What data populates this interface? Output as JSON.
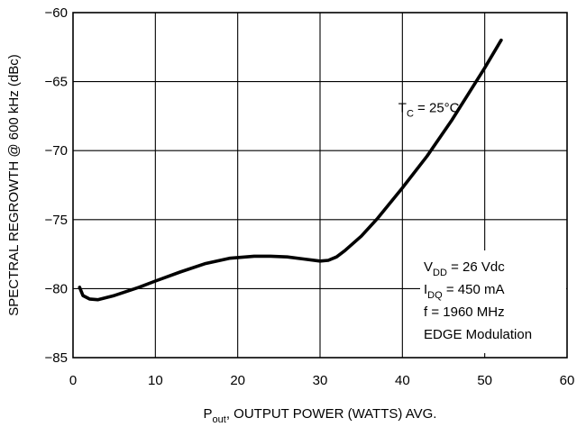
{
  "chart_data": {
    "type": "line",
    "title": "",
    "xlabel": {
      "main": "P",
      "sub": "out",
      "rest": ", OUTPUT POWER (WATTS) AVG."
    },
    "ylabel": "SPECTRAL REGROWTH @ 600 kHz (dBc)",
    "xlim": [
      0,
      60
    ],
    "ylim": [
      -85,
      -60
    ],
    "x_ticks": [
      0,
      10,
      20,
      30,
      40,
      50,
      60
    ],
    "y_ticks": [
      -85,
      -80,
      -75,
      -70,
      -65,
      -60
    ],
    "x_tick_labels": [
      "0",
      "10",
      "20",
      "30",
      "40",
      "50",
      "60"
    ],
    "y_tick_labels": [
      "−85",
      "−80",
      "−75",
      "−70",
      "−65",
      "−60"
    ],
    "grid": true,
    "series": [
      {
        "x": [
          0.8,
          1.2,
          2.0,
          3.0,
          5.0,
          8.0,
          10.0,
          13.0,
          16.0,
          19.0,
          22.0,
          24.0,
          26.0,
          28.0,
          30.0,
          31.0,
          32.0,
          33.0,
          35.0,
          37.0,
          40.0,
          43.0,
          46.0,
          48.0,
          50.0,
          52.0
        ],
        "y": [
          -79.9,
          -80.5,
          -80.75,
          -80.8,
          -80.5,
          -79.9,
          -79.45,
          -78.8,
          -78.2,
          -77.8,
          -77.65,
          -77.65,
          -77.7,
          -77.85,
          -78.0,
          -77.95,
          -77.7,
          -77.25,
          -76.2,
          -74.9,
          -72.7,
          -70.4,
          -67.8,
          -65.9,
          -64.0,
          -62.0
        ]
      }
    ],
    "annotations": {
      "tc": {
        "main": "T",
        "sub": "C",
        "rest": " = 25°C",
        "x": 39.5,
        "y": -67.2
      },
      "conditions": [
        {
          "main": "V",
          "sub": "DD",
          "rest": " = 26 Vdc"
        },
        {
          "main": "I",
          "sub": "DQ",
          "rest": " = 450 mA"
        },
        {
          "main": "f = 1960 MHz",
          "sub": "",
          "rest": ""
        },
        {
          "main": "EDGE Modulation",
          "sub": "",
          "rest": ""
        }
      ]
    }
  }
}
